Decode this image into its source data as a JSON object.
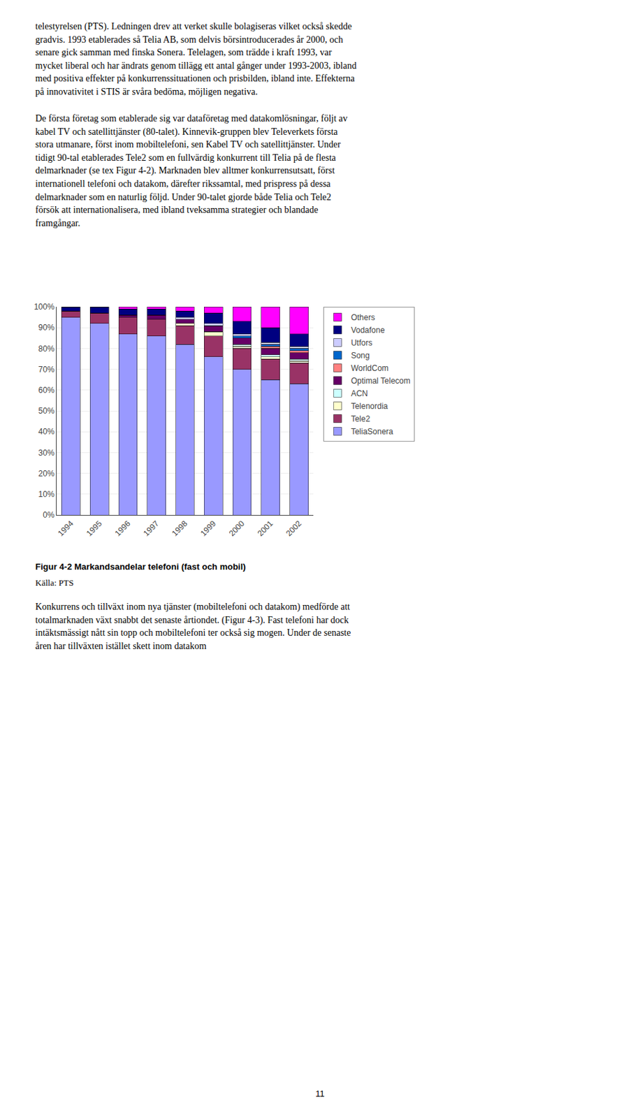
{
  "chart_data": {
    "type": "bar",
    "stacked": true,
    "title": "Figur 4-2 Markandsandelar telefoni (fast och mobil)",
    "categories": [
      "1994",
      "1995",
      "1996",
      "1997",
      "1998",
      "1999",
      "2000",
      "2001",
      "2002"
    ],
    "series": [
      {
        "name": "TeliaSonera",
        "color": "#9999FF",
        "values": [
          95,
          92,
          87,
          86,
          82,
          76,
          70,
          65,
          63
        ]
      },
      {
        "name": "Tele2",
        "color": "#993366",
        "values": [
          3,
          5,
          8,
          8,
          9,
          10,
          10,
          10,
          10
        ]
      },
      {
        "name": "Telenordia",
        "color": "#FFFFCC",
        "values": [
          0,
          0,
          0,
          0,
          1,
          2,
          1,
          1,
          1
        ]
      },
      {
        "name": "ACN",
        "color": "#CCFFFF",
        "values": [
          0,
          0,
          0,
          0,
          0,
          0,
          1,
          1,
          1
        ]
      },
      {
        "name": "Optimal Telecom",
        "color": "#660066",
        "values": [
          0,
          0,
          1,
          2,
          2,
          3,
          3,
          3,
          3
        ]
      },
      {
        "name": "WorldCom",
        "color": "#FF8080",
        "values": [
          0,
          0,
          0,
          0,
          0,
          0,
          0,
          1,
          1
        ]
      },
      {
        "name": "Song",
        "color": "#0066CC",
        "values": [
          0,
          0,
          0,
          0,
          0,
          0,
          1,
          1,
          1
        ]
      },
      {
        "name": "Utfors",
        "color": "#CCCCFF",
        "values": [
          0,
          0,
          0,
          0,
          1,
          1,
          1,
          1,
          1
        ]
      },
      {
        "name": "Vodafone",
        "color": "#000080",
        "values": [
          2,
          3,
          3,
          3,
          3,
          5,
          6,
          7,
          6
        ]
      },
      {
        "name": "Others",
        "color": "#FF00FF",
        "values": [
          0,
          0,
          1,
          1,
          2,
          3,
          7,
          10,
          13
        ]
      }
    ],
    "ylim": [
      0,
      100
    ],
    "yticks": [
      {
        "value": 0,
        "label": "0%"
      },
      {
        "value": 10,
        "label": "10%"
      },
      {
        "value": 20,
        "label": "20%"
      },
      {
        "value": 30,
        "label": "30%"
      },
      {
        "value": 40,
        "label": "40%"
      },
      {
        "value": 50,
        "label": "50%"
      },
      {
        "value": 60,
        "label": "60%"
      },
      {
        "value": 70,
        "label": "70%"
      },
      {
        "value": 80,
        "label": "80%"
      },
      {
        "value": 90,
        "label": "90%"
      },
      {
        "value": 100,
        "label": "100%"
      }
    ],
    "grid": true,
    "legend": "right"
  },
  "source": "Källa: PTS",
  "text_top": "telestyrelsen (PTS). Ledningen drev att verket skulle bolagiseras vilket också skedde\ngradvis. 1993 etablerades så Telia AB, som delvis börsintroducerades år 2000, och\nsenare gick samman med finska Sonera. Telelagen, som trädde i kraft 1993, var\nmycket liberal och har ändrats genom tillägg ett antal gånger under 1993-2003, ibland\nmed positiva effekter på konkurrenssituationen och prisbilden, ibland inte. Effekterna\npå innovativitet i STIS är svåra bedöma, möjligen negativa.",
  "text_middle": "De första företag som etablerade sig var dataföretag med datakomlösningar, följt av\nkabel TV och satellittjänster (80-talet). Kinnevik-gruppen blev Televerkets första\nstora utmanare, först inom mobiltelefoni, sen Kabel TV och satellittjänster. Under\ntidigt 90-tal etablerades Tele2 som en fullvärdig konkurrent till Telia på de flesta\ndelmarknader (se tex Figur 4-2). Marknaden blev alltmer konkurrensutsatt, först\ninternationell telefoni och datakom, därefter rikssamtal, med prispress på dessa\ndelmarknader som en naturlig följd. Under 90-talet gjorde både Telia och Tele2\nförsök att internationalisera, med ibland tveksamma strategier och blandade\nframgångar.",
  "text_bottom": "Konkurrens och tillväxt inom nya tjänster (mobiltelefoni och datakom) medförde att\ntotalmarknaden växt snabbt det senaste årtiondet. (Figur 4-3). Fast telefoni har dock\nintäktsmässigt nått sin topp och mobiltelefoni ter också sig mogen. Under de senaste\nåren har tillväxten istället skett inom datakom",
  "page_number": "11"
}
